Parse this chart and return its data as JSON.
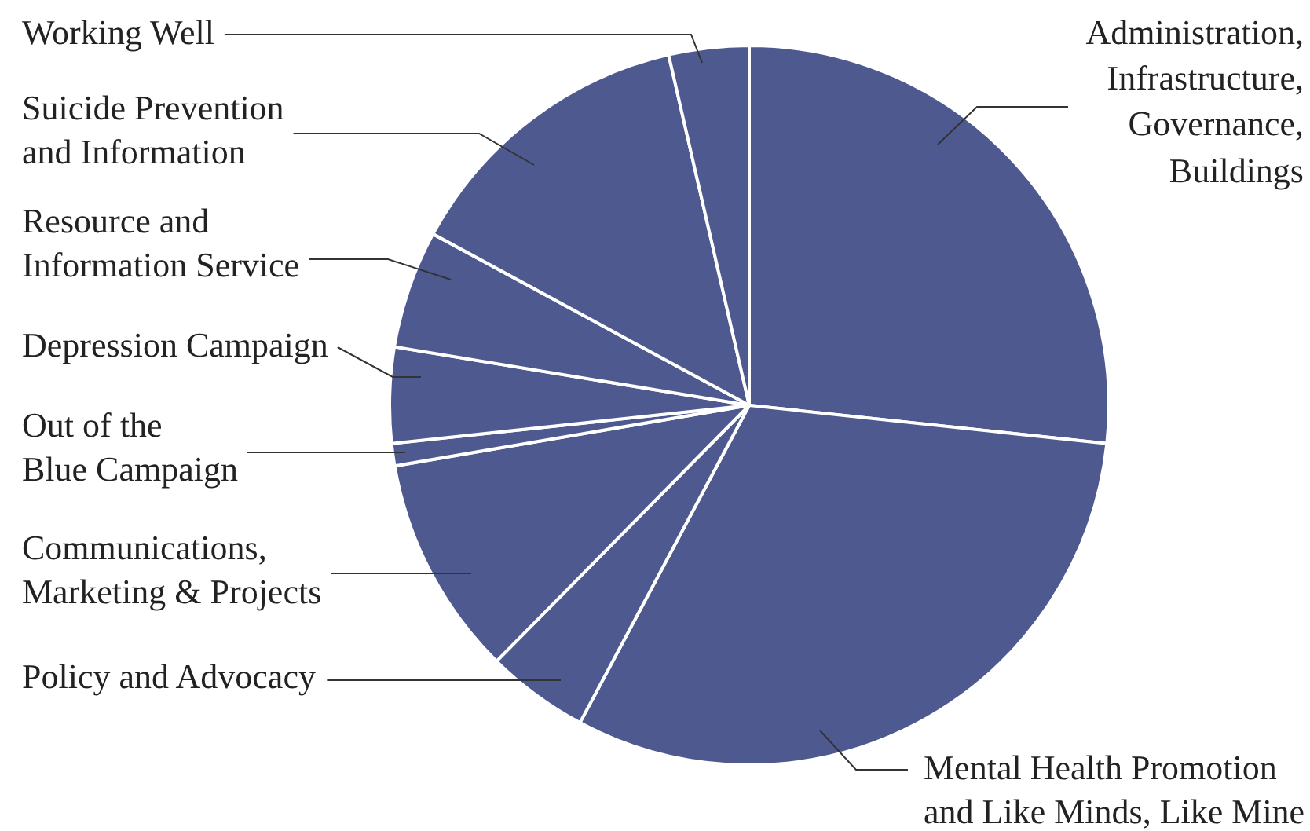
{
  "chart_data": {
    "type": "pie",
    "categories": [
      "Administration, Infrastructure, Governance, Buildings",
      "Mental Health Promotion and Like Minds, Like Mine",
      "Policy and Advocacy",
      "Communications, Marketing & Projects",
      "Out of the Blue Campaign",
      "Depression Campaign",
      "Resource and Information Service",
      "Suicide Prevention and Information",
      "Working Well"
    ],
    "values": [
      26.7,
      31.1,
      4.6,
      9.9,
      1.0,
      4.3,
      5.3,
      13.5,
      3.6
    ],
    "colors": [
      "#4e5a8f",
      "#4e5a8f",
      "#4e5a8f",
      "#4e5a8f",
      "#4e5a8f",
      "#4e5a8f",
      "#4e5a8f",
      "#4e5a8f",
      "#4e5a8f"
    ],
    "legend": false
  }
}
